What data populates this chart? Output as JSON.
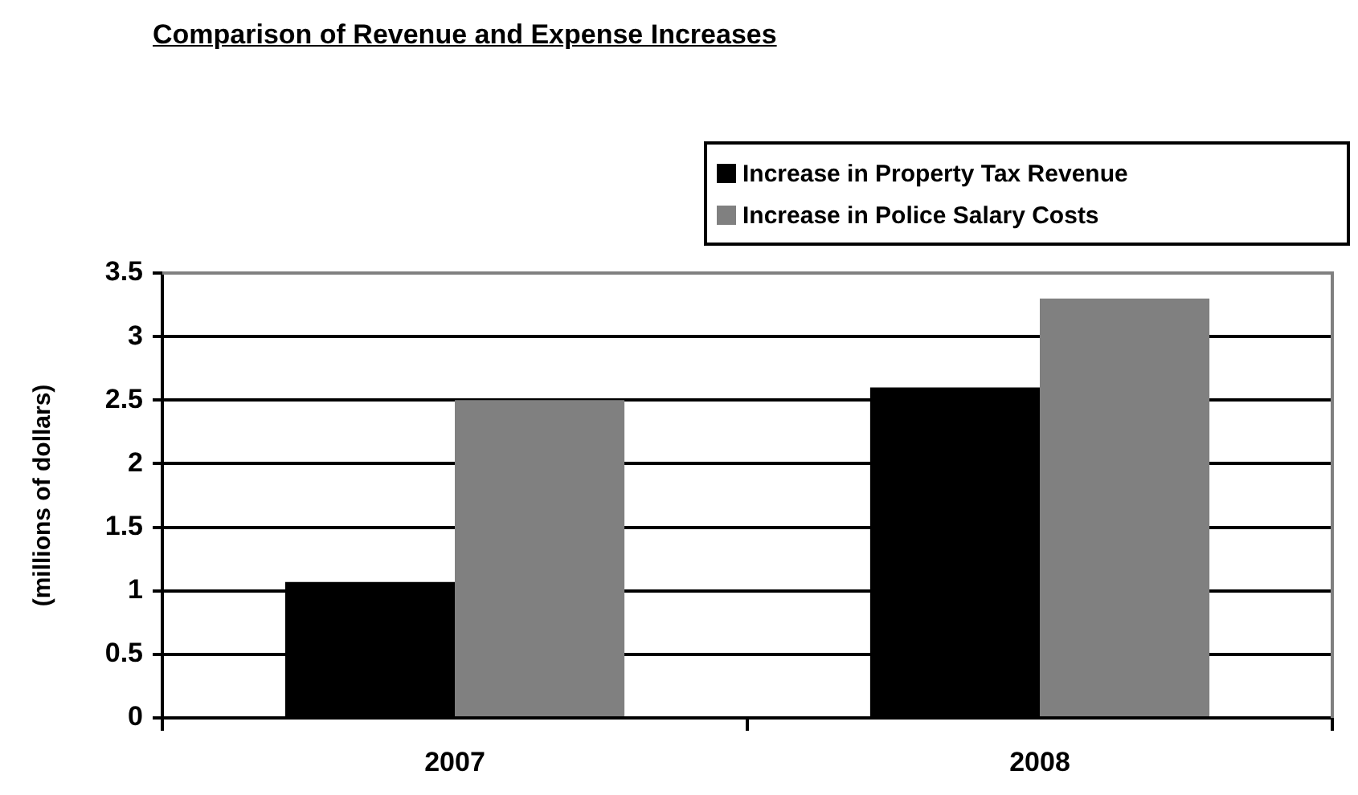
{
  "chart_data": {
    "type": "bar",
    "title": "Comparison of Revenue and Expense Increases",
    "ylabel": "(millions of dollars)",
    "categories": [
      "2007",
      "2008"
    ],
    "series": [
      {
        "name": "Increase in Property Tax Revenue",
        "color": "#000000",
        "values": [
          1.07,
          2.6
        ]
      },
      {
        "name": "Increase in Police Salary Costs",
        "color": "#808080",
        "values": [
          2.5,
          3.3
        ]
      }
    ],
    "ylim": [
      0,
      3.5
    ],
    "yticks": [
      0,
      0.5,
      1,
      1.5,
      2,
      2.5,
      3,
      3.5
    ],
    "grid": "y",
    "legend": "top right"
  }
}
